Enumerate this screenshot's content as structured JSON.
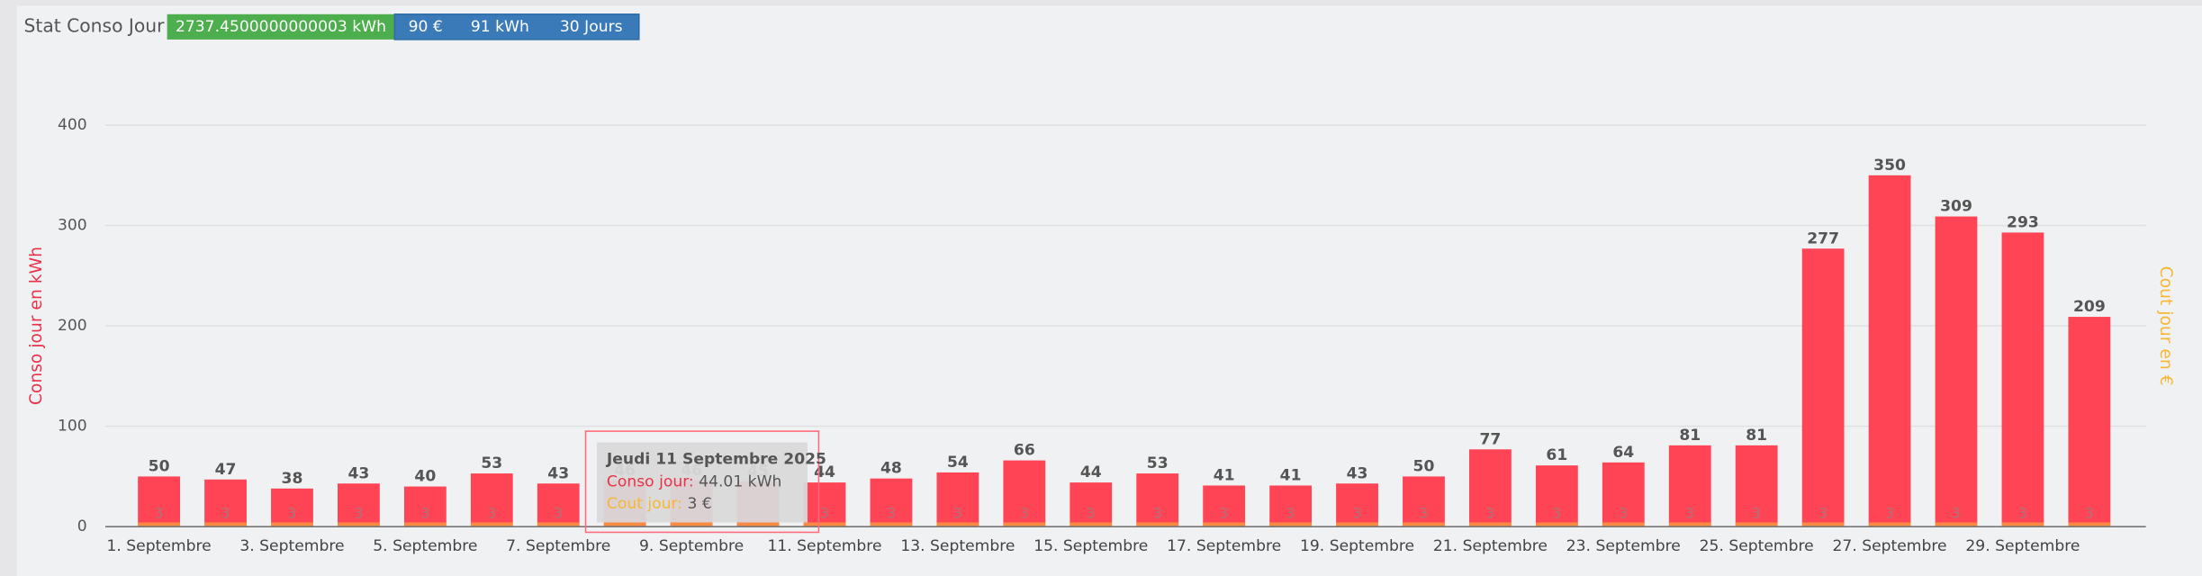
{
  "header": {
    "title": "Stat Conso Jour",
    "badges": [
      "2737.4500000000003 kWh",
      "90 €",
      "91 kWh",
      "30 Jours"
    ]
  },
  "chart_data": {
    "type": "bar",
    "y_label": "Conso jour en kWh",
    "y2_label": "Cout jour en €",
    "categories": [
      "1. Septembre",
      null,
      "3. Septembre",
      null,
      "5. Septembre",
      null,
      "7. Septembre",
      null,
      "9. Septembre",
      null,
      "11. Septembre",
      null,
      "13. Septembre",
      null,
      "15. Septembre",
      null,
      "17. Septembre",
      null,
      "19. Septembre",
      null,
      "21. Septembre",
      null,
      "23. Septembre",
      null,
      "25. Septembre",
      null,
      "27. Septembre",
      null,
      "29. Septembre",
      null
    ],
    "series": [
      {
        "name": "Conso jour",
        "color": "#ff4455",
        "values": [
          50,
          47,
          38,
          43,
          40,
          53,
          43,
          46,
          46,
          45,
          44,
          48,
          54,
          66,
          44,
          53,
          41,
          41,
          43,
          50,
          77,
          61,
          64,
          81,
          81,
          277,
          350,
          309,
          293,
          209
        ]
      },
      {
        "name": "Cout jour",
        "color": "#f7b733",
        "axis": "y2",
        "values": [
          3,
          3,
          3,
          3,
          3,
          3,
          3,
          3,
          3,
          3,
          3,
          3,
          3,
          3,
          3,
          3,
          3,
          3,
          3,
          3,
          3,
          3,
          3,
          3,
          3,
          3,
          3,
          3,
          3,
          3
        ]
      }
    ],
    "ylim": [
      0,
      400
    ],
    "yticks": [
      0,
      100,
      200,
      300,
      400
    ],
    "grid": true,
    "tooltip": {
      "title": "Jeudi 11 Septembre 2025",
      "lines": [
        [
          "Conso jour:",
          " 44.01 kWh"
        ],
        [
          "Cout jour:",
          " 3 €"
        ]
      ]
    }
  }
}
